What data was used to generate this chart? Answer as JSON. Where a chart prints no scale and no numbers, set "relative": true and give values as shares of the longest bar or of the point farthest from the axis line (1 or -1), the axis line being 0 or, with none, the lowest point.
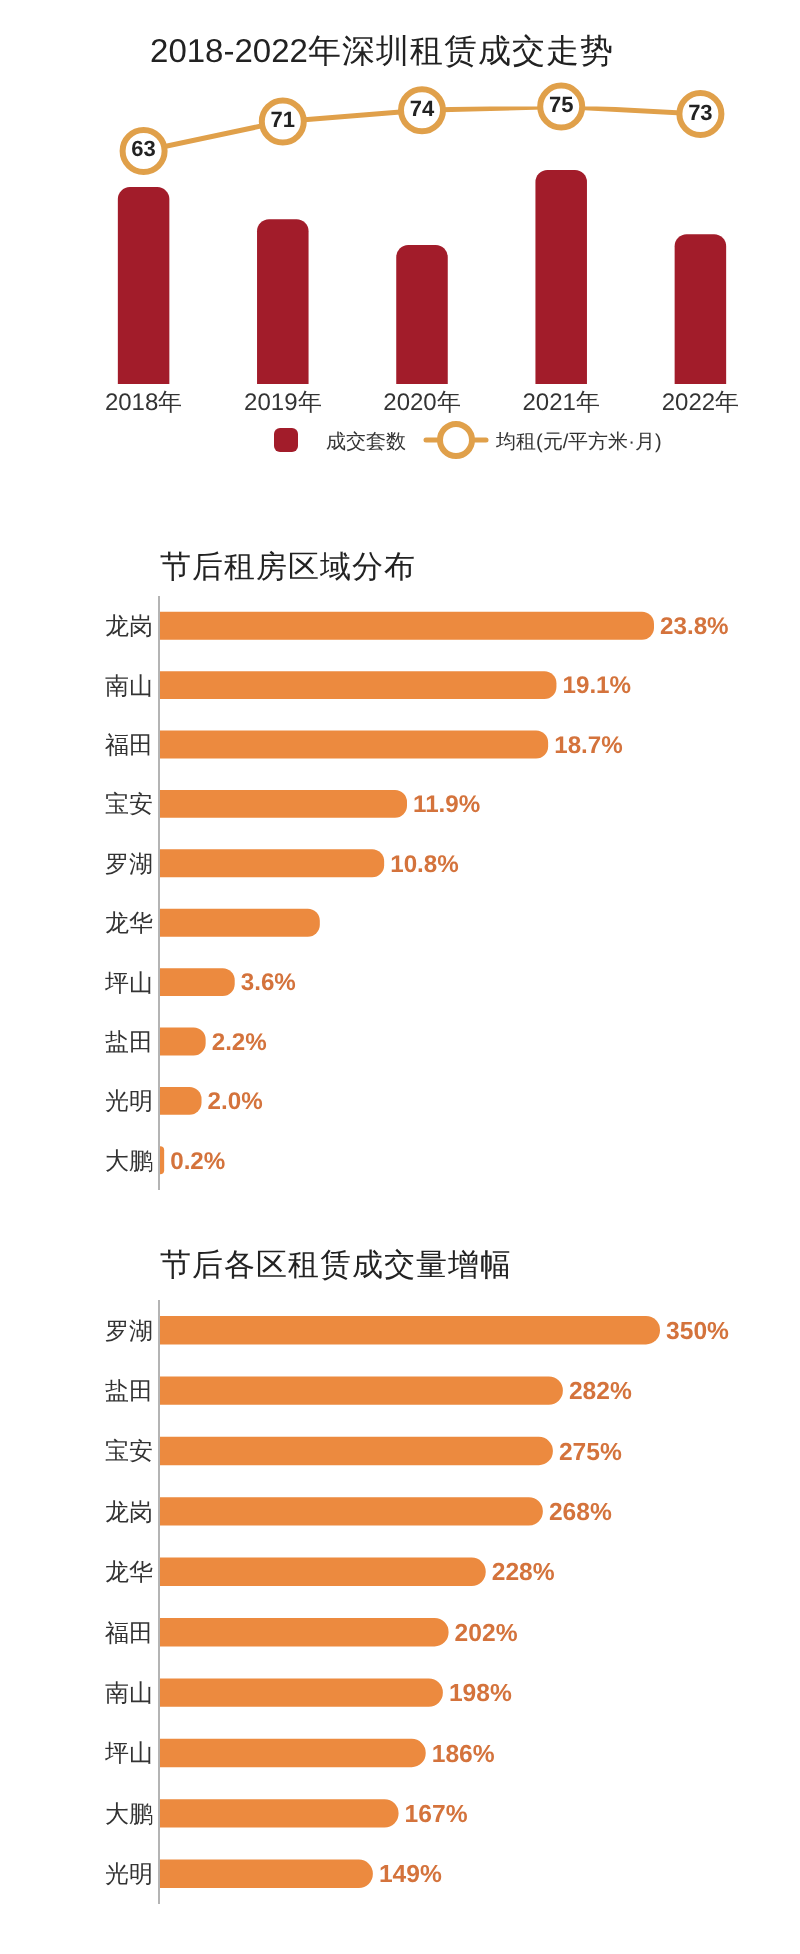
{
  "chart_data": [
    {
      "type": "line",
      "title": "2018-2022年深圳租赁成交走势",
      "categories": [
        null,
        null,
        null,
        null,
        null
      ],
      "tick_labels": false,
      "legend": "bottom",
      "marker": "circle",
      "series": [
        {
          "name": "均租(元/平方米·月)",
          "color": "#e0a04a",
          "values": [
            63,
            71,
            74,
            75,
            73
          ],
          "value_labels": [
            "63",
            "71",
            "74",
            "75",
            "73"
          ]
        }
      ]
    },
    {
      "type": "bar",
      "categories": [
        "2018年",
        "2019年",
        "2020年",
        "2021年",
        "2022年"
      ],
      "relative": true,
      "legend": "bottom",
      "series": [
        {
          "name": "成交套数",
          "color": "#a21c2a",
          "values": [
            0.92,
            0.77,
            0.65,
            1,
            0.7
          ]
        }
      ]
    },
    {
      "type": "bar",
      "orientation": "horizontal",
      "title": "节后租房区域分布",
      "tick_labels": "y",
      "categories": [
        "龙岗",
        "南山",
        "福田",
        "宝安",
        "罗湖",
        "龙华",
        "坪山",
        "盐田",
        "光明",
        "大鹏"
      ],
      "color": "#ec8a3f",
      "values": [
        23.8,
        19.1,
        18.7,
        11.9,
        10.8,
        7.7,
        3.6,
        2.2,
        2.0,
        0.2
      ],
      "value_labels": [
        "23.8%",
        "19.1%",
        "18.7%",
        "11.9%",
        "10.8%",
        null,
        "3.6%",
        "2.2%",
        "2.0%",
        "0.2%"
      ]
    },
    {
      "type": "bar",
      "orientation": "horizontal",
      "title": "节后各区租赁成交量增幅",
      "tick_labels": "y",
      "categories": [
        "罗湖",
        "盐田",
        "宝安",
        "龙岗",
        "龙华",
        "福田",
        "南山",
        "坪山",
        "大鹏",
        "光明"
      ],
      "color": "#ec8a3f",
      "values": [
        350,
        282,
        275,
        268,
        228,
        202,
        198,
        186,
        167,
        149
      ],
      "value_labels": [
        "350%",
        "282%",
        "275%",
        "268%",
        "228%",
        "202%",
        "198%",
        "186%",
        "167%",
        "149%"
      ]
    }
  ]
}
